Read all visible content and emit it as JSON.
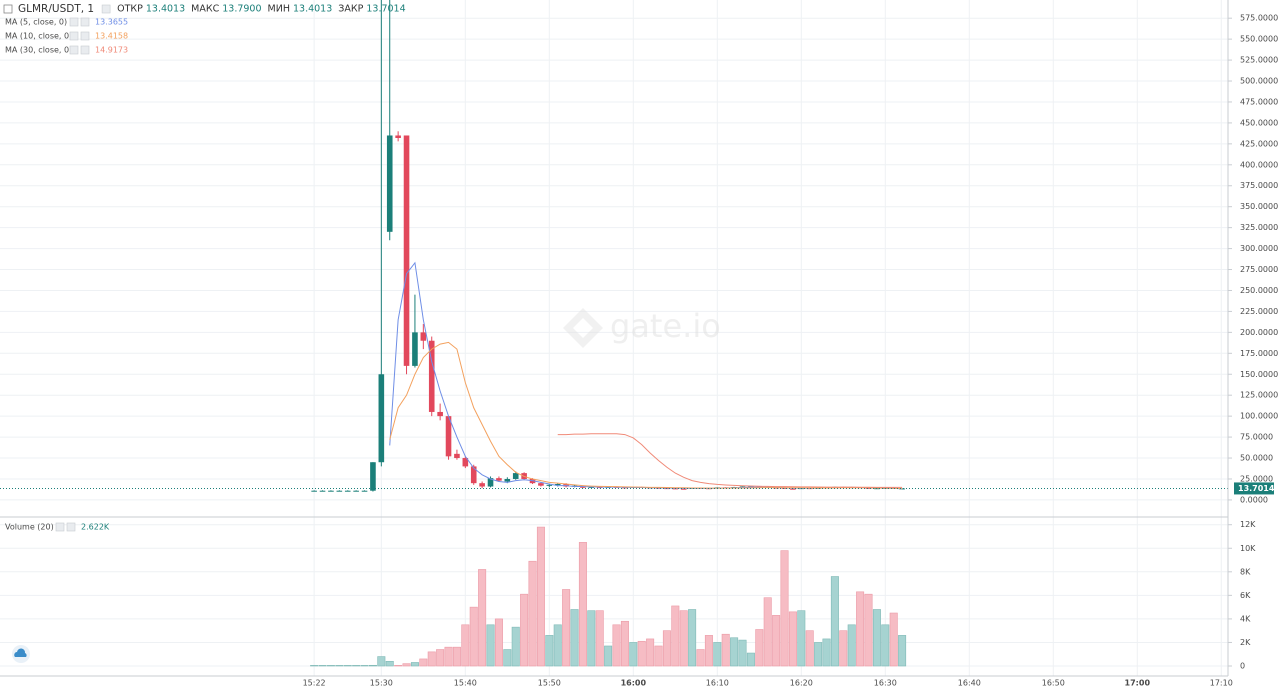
{
  "chart_data": [
    {
      "type": "candlestick",
      "title": "GLMR/USDT, 1",
      "stats": [
        {
          "label": "ОТКР",
          "value": "13.4013"
        },
        {
          "label": "МАКС",
          "value": "13.7900"
        },
        {
          "label": "МИН",
          "value": "13.4013"
        },
        {
          "label": "ЗАКР",
          "value": "13.7014"
        }
      ],
      "watermark": "gate.io",
      "x": [
        922,
        923,
        924,
        925,
        926,
        927,
        928,
        929,
        930,
        931,
        932,
        933,
        934,
        935,
        936,
        937,
        938,
        939,
        940,
        941,
        942,
        943,
        944,
        945,
        946,
        947,
        948,
        949,
        950,
        951,
        952,
        953,
        954,
        955,
        956,
        957,
        958,
        959,
        960,
        961,
        962,
        963,
        964,
        965,
        966,
        967,
        968,
        969,
        970,
        971,
        972,
        973,
        974,
        975,
        976,
        977,
        978,
        979,
        980,
        981,
        982,
        983,
        984,
        985,
        986,
        987,
        988,
        989,
        990,
        991,
        992
      ],
      "open": [
        11,
        11,
        11,
        11,
        11,
        11,
        11,
        11,
        45,
        320,
        435,
        435,
        160,
        200,
        190,
        105,
        100,
        55,
        50,
        40,
        20,
        16,
        26,
        22,
        25,
        32,
        25,
        20,
        17,
        18,
        19,
        16,
        17,
        14.5,
        15.5,
        14.8,
        15.6,
        15,
        14.4,
        15.5,
        14.9,
        14.5,
        14.1,
        13.8,
        13.4,
        13.1,
        14.4,
        14,
        13.7,
        15,
        14.3,
        15.4,
        16,
        16.3,
        15.5,
        14.7,
        14.3,
        13.4,
        13.2,
        14.1,
        13.8,
        14.4,
        14.8,
        15.6,
        14.9,
        15.3,
        14.3,
        13.5,
        14,
        14.3,
        13.4013
      ],
      "high": [
        11.5,
        11.5,
        11.5,
        11.5,
        11.5,
        11.5,
        11.5,
        45,
        620,
        620,
        440,
        435,
        245,
        210,
        195,
        115,
        100,
        60,
        52,
        42,
        22,
        28,
        28,
        27,
        34,
        33,
        26,
        21,
        19,
        20,
        20,
        18,
        17.5,
        16,
        16,
        16,
        16.2,
        15.5,
        15.8,
        15.8,
        15.2,
        14.8,
        14.5,
        14.2,
        13.8,
        14.6,
        14.6,
        14.3,
        15.2,
        15.3,
        15.6,
        16.2,
        16.5,
        16.6,
        15.8,
        15,
        14.6,
        13.7,
        14.3,
        14.4,
        14.6,
        15,
        15.9,
        15.8,
        15.6,
        15.5,
        14.5,
        14.2,
        14.6,
        14.9,
        13.79
      ],
      "low": [
        10.5,
        10.5,
        10.5,
        10.5,
        10.5,
        10.5,
        10.5,
        10,
        40,
        310,
        428,
        150,
        158,
        180,
        100,
        95,
        48,
        48,
        38,
        18,
        14,
        15,
        22,
        20,
        24,
        24,
        19,
        16,
        15,
        16,
        15,
        15,
        14,
        14,
        14,
        14.5,
        14.8,
        14.2,
        14.2,
        14.6,
        14.3,
        13.9,
        13.6,
        13.2,
        12.9,
        13,
        13.8,
        13.5,
        13.6,
        14.1,
        14.2,
        15.2,
        15.8,
        15.2,
        14.4,
        14,
        13.1,
        12.9,
        13.1,
        13.6,
        13.7,
        14.2,
        14.6,
        14.7,
        14.8,
        14.1,
        13.3,
        13.4,
        13.9,
        13.3,
        13.4013
      ],
      "close": [
        11,
        11,
        11,
        11,
        11,
        11,
        11,
        45,
        150,
        435,
        432,
        160,
        200,
        190,
        105,
        100,
        52,
        50,
        40,
        20,
        16,
        26,
        23,
        25,
        32,
        25,
        20,
        17,
        18,
        19,
        16,
        17,
        14.5,
        15.5,
        14.8,
        15.6,
        15,
        14.4,
        15.5,
        14.9,
        14.5,
        14.1,
        13.8,
        13.4,
        13.1,
        14.4,
        14,
        13.7,
        15,
        14.3,
        15.4,
        16,
        16.3,
        15.5,
        14.7,
        14.3,
        13.4,
        13.2,
        14.1,
        13.8,
        14.4,
        14.8,
        15.6,
        14.9,
        15.3,
        14.3,
        13.5,
        14,
        14.3,
        13.4,
        13.7014
      ],
      "up_color": "#1b7f79",
      "down_color": "#e2485c",
      "series": [
        {
          "name": "MA (5, close, 0)",
          "color": "#6f8ee6",
          "last": 13.3655,
          "values": [
            null,
            null,
            null,
            null,
            null,
            null,
            null,
            null,
            null,
            65,
            215,
            270,
            283,
            215,
            165,
            130,
            100,
            75,
            52,
            38,
            30,
            25,
            22,
            21,
            23,
            24,
            23,
            21,
            19,
            17,
            17,
            16,
            16,
            15.5,
            15.4,
            15.3,
            15.2,
            15,
            14.9,
            14.8,
            14.6,
            14.5,
            14.3,
            14.1,
            13.9,
            13.8,
            13.8,
            13.8,
            14,
            14.2,
            14.5,
            14.8,
            15.2,
            15.3,
            15.2,
            14.9,
            14.5,
            14.1,
            13.9,
            13.9,
            14.1,
            14.4,
            14.7,
            14.9,
            15,
            14.8,
            14.5,
            14.2,
            14,
            13.8,
            13.3655
          ]
        },
        {
          "name": "MA (10, close, 0)",
          "color": "#f3a15e",
          "last": 13.4158,
          "values": [
            null,
            null,
            null,
            null,
            null,
            null,
            null,
            null,
            null,
            72,
            110,
            125,
            150,
            170,
            180,
            186,
            188,
            180,
            140,
            110,
            90,
            70,
            52,
            42,
            33,
            28,
            25,
            23,
            21,
            20,
            19,
            18,
            17,
            16.5,
            16.2,
            16,
            15.8,
            15.6,
            15.4,
            15.2,
            15,
            14.9,
            14.8,
            14.6,
            14.5,
            14.3,
            14.2,
            14.1,
            14.1,
            14.1,
            14.2,
            14.3,
            14.4,
            14.6,
            14.7,
            14.7,
            14.6,
            14.5,
            14.4,
            14.3,
            14.3,
            14.3,
            14.4,
            14.5,
            14.6,
            14.6,
            14.5,
            14.3,
            14.1,
            13.9,
            13.4158
          ]
        },
        {
          "name": "MA (30, close, 0)",
          "color": "#f08a78",
          "last": 14.9173,
          "values": [
            null,
            null,
            null,
            null,
            null,
            null,
            null,
            null,
            null,
            null,
            null,
            null,
            null,
            null,
            null,
            null,
            null,
            null,
            null,
            null,
            null,
            null,
            null,
            null,
            null,
            null,
            null,
            null,
            null,
            78,
            78,
            78.5,
            78.5,
            79,
            79,
            79,
            79,
            78,
            74,
            66,
            56,
            47,
            39,
            32,
            27,
            23,
            21,
            19.5,
            18.5,
            17.8,
            17.3,
            16.9,
            16.6,
            16.3,
            16.1,
            15.9,
            15.8,
            15.7,
            15.6,
            15.5,
            15.4,
            15.3,
            15.3,
            15.2,
            15.2,
            15.1,
            15.1,
            15,
            15,
            14.95,
            14.9173
          ]
        }
      ],
      "last_price": {
        "value": 13.7014,
        "label": "13.7014"
      },
      "xlim": [
        884.6,
        1030.8
      ],
      "xticks": [
        {
          "value": 922,
          "label": "15:22"
        },
        {
          "value": 930,
          "label": "15:30"
        },
        {
          "value": 940,
          "label": "15:40"
        },
        {
          "value": 950,
          "label": "15:50"
        },
        {
          "value": 960,
          "label": "16:00"
        },
        {
          "value": 970,
          "label": "16:10"
        },
        {
          "value": 980,
          "label": "16:20"
        },
        {
          "value": 990,
          "label": "16:30"
        },
        {
          "value": 1000,
          "label": "16:40"
        },
        {
          "value": 1010,
          "label": "16:50"
        },
        {
          "value": 1020,
          "label": "17:00"
        },
        {
          "value": 1030,
          "label": "17:10"
        }
      ],
      "ylim": [
        -18,
        580
      ],
      "yticks": [
        {
          "value": 0,
          "label": "0.0000"
        },
        {
          "value": 25,
          "label": "25.0000"
        },
        {
          "value": 50,
          "label": "50.0000"
        },
        {
          "value": 75,
          "label": "75.0000"
        },
        {
          "value": 100,
          "label": "100.0000"
        },
        {
          "value": 125,
          "label": "125.0000"
        },
        {
          "value": 150,
          "label": "150.0000"
        },
        {
          "value": 175,
          "label": "175.0000"
        },
        {
          "value": 200,
          "label": "200.0000"
        },
        {
          "value": 225,
          "label": "225.0000"
        },
        {
          "value": 250,
          "label": "250.0000"
        },
        {
          "value": 275,
          "label": "275.0000"
        },
        {
          "value": 300,
          "label": "300.0000"
        },
        {
          "value": 325,
          "label": "325.0000"
        },
        {
          "value": 350,
          "label": "350.0000"
        },
        {
          "value": 375,
          "label": "375.0000"
        },
        {
          "value": 400,
          "label": "400.0000"
        },
        {
          "value": 425,
          "label": "425.0000"
        },
        {
          "value": 450,
          "label": "450.0000"
        },
        {
          "value": 475,
          "label": "475.0000"
        },
        {
          "value": 500,
          "label": "500.0000"
        },
        {
          "value": 525,
          "label": "525.0000"
        },
        {
          "value": 550,
          "label": "550.0000"
        },
        {
          "value": 575,
          "label": "575.0000"
        }
      ],
      "grid": true
    },
    {
      "type": "bar",
      "title": "Volume (20)",
      "last": "2.622K",
      "x": [
        922,
        923,
        924,
        925,
        926,
        927,
        928,
        929,
        930,
        931,
        932,
        933,
        934,
        935,
        936,
        937,
        938,
        939,
        940,
        941,
        942,
        943,
        944,
        945,
        946,
        947,
        948,
        949,
        950,
        951,
        952,
        953,
        954,
        955,
        956,
        957,
        958,
        959,
        960,
        961,
        962,
        963,
        964,
        965,
        966,
        967,
        968,
        969,
        970,
        971,
        972,
        973,
        974,
        975,
        976,
        977,
        978,
        979,
        980,
        981,
        982,
        983,
        984,
        985,
        986,
        987,
        988,
        989,
        990,
        991,
        992
      ],
      "values": [
        50,
        50,
        50,
        50,
        50,
        50,
        50,
        60,
        800,
        400,
        50,
        200,
        300,
        600,
        1200,
        1400,
        1600,
        1600,
        3500,
        5000,
        8200,
        3500,
        4000,
        1400,
        3300,
        6100,
        8900,
        11800,
        2600,
        3500,
        6500,
        4800,
        10500,
        4700,
        4700,
        1700,
        3500,
        3800,
        2000,
        2100,
        2300,
        1700,
        3000,
        5100,
        4700,
        4800,
        1400,
        2600,
        2000,
        2700,
        2400,
        2200,
        1100,
        3100,
        5800,
        4300,
        9800,
        4600,
        4700,
        3000,
        2000,
        2300,
        7600,
        3000,
        3500,
        6300,
        6100,
        4800,
        3500,
        4500,
        2600
      ],
      "up_color": "#a6d3d1",
      "down_color": "#f6bcc4",
      "ylim": [
        0,
        12400
      ],
      "yticks": [
        {
          "value": 0,
          "label": "0"
        },
        {
          "value": 2000,
          "label": "2K"
        },
        {
          "value": 4000,
          "label": "4K"
        },
        {
          "value": 6000,
          "label": "6K"
        },
        {
          "value": 8000,
          "label": "8K"
        },
        {
          "value": 10000,
          "label": "10K"
        },
        {
          "value": 12000,
          "label": "12K"
        }
      ],
      "grid": true
    }
  ]
}
